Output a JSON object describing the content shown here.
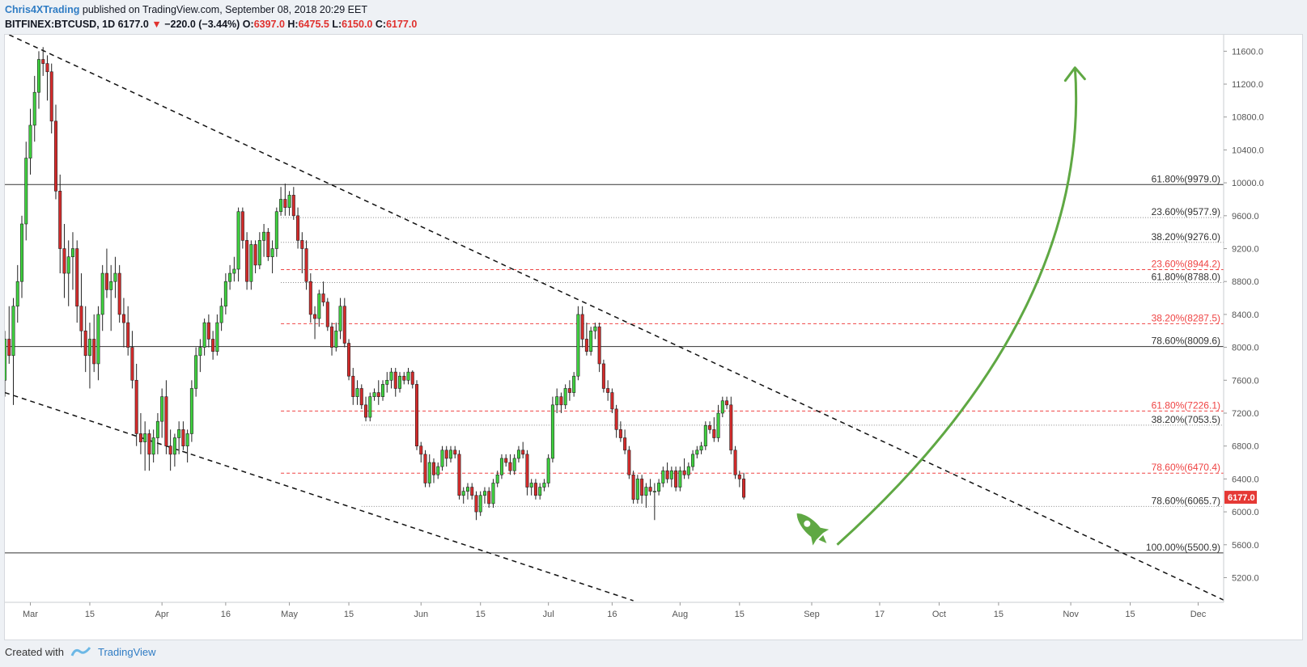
{
  "header": {
    "author": "Chris4XTrading",
    "published": "published on TradingView.com, September 08, 2018 20:29 EET",
    "symbol": "BITFINEX:BTCUSD, 1D",
    "last": "6177.0",
    "change": "−220.0 (−3.44%)",
    "open_label": "O:",
    "open": "6397.0",
    "high_label": "H:",
    "high": "6475.5",
    "low_label": "L:",
    "low": "6150.0",
    "close_label": "C:",
    "close": "6177.0"
  },
  "footer": {
    "created": "Created with",
    "brand": "TradingView"
  },
  "colors": {
    "up": "#3fd03f",
    "down": "#d42b2b",
    "fib_red": "#ef4444",
    "arrow": "#5fa843",
    "axis_text": "#555555",
    "price_badge": "#e53935"
  },
  "chart_data": {
    "type": "candlestick",
    "symbol": "BTCUSD",
    "interval": "1D",
    "ylim": [
      4900,
      11800
    ],
    "y_ticks": [
      5200,
      5600,
      6000,
      6400,
      6800,
      7200,
      7600,
      8000,
      8400,
      8800,
      9200,
      9600,
      10000,
      10400,
      10800,
      11200,
      11600
    ],
    "x_ticks": [
      {
        "label": "Mar",
        "day": 0
      },
      {
        "label": "15",
        "day": 14
      },
      {
        "label": "Apr",
        "day": 31
      },
      {
        "label": "16",
        "day": 46
      },
      {
        "label": "May",
        "day": 61
      },
      {
        "label": "15",
        "day": 75
      },
      {
        "label": "Jun",
        "day": 92
      },
      {
        "label": "15",
        "day": 106
      },
      {
        "label": "Jul",
        "day": 122
      },
      {
        "label": "16",
        "day": 137
      },
      {
        "label": "Aug",
        "day": 153
      },
      {
        "label": "15",
        "day": 167
      },
      {
        "label": "Sep",
        "day": 184
      },
      {
        "label": "17",
        "day": 200
      },
      {
        "label": "Oct",
        "day": 214
      },
      {
        "label": "15",
        "day": 228
      },
      {
        "label": "Nov",
        "day": 245
      },
      {
        "label": "15",
        "day": 259
      },
      {
        "label": "Dec",
        "day": 275
      }
    ],
    "day_range": [
      -6,
      281
    ],
    "last_price": "6177.0",
    "candles": [
      [
        -6,
        7600,
        8200,
        7400,
        8100
      ],
      [
        -5,
        8100,
        8500,
        7800,
        7900
      ],
      [
        -4,
        7900,
        8600,
        7300,
        8500
      ],
      [
        -3,
        8500,
        9000,
        8300,
        8800
      ],
      [
        -2,
        8800,
        9600,
        8600,
        9500
      ],
      [
        -1,
        9500,
        10500,
        9300,
        10300
      ],
      [
        0,
        10300,
        10900,
        10100,
        10700
      ],
      [
        1,
        10700,
        11300,
        10500,
        11100
      ],
      [
        2,
        11100,
        11600,
        10900,
        11500
      ],
      [
        3,
        11500,
        11650,
        11300,
        11450
      ],
      [
        4,
        11450,
        11550,
        11000,
        11350
      ],
      [
        5,
        11350,
        11450,
        10600,
        10750
      ],
      [
        6,
        10750,
        10950,
        9800,
        9900
      ],
      [
        7,
        9900,
        10100,
        8900,
        9200
      ],
      [
        8,
        9200,
        9500,
        8600,
        8900
      ],
      [
        9,
        8900,
        9300,
        8500,
        9100
      ],
      [
        10,
        9100,
        9400,
        8700,
        9200
      ],
      [
        11,
        9200,
        9300,
        8300,
        8500
      ],
      [
        12,
        8500,
        8900,
        8000,
        8200
      ],
      [
        13,
        8200,
        8500,
        7700,
        7900
      ],
      [
        14,
        7900,
        8300,
        7500,
        8100
      ],
      [
        15,
        8100,
        8400,
        7700,
        7800
      ],
      [
        16,
        7800,
        8500,
        7600,
        8400
      ],
      [
        17,
        8400,
        9000,
        8200,
        8900
      ],
      [
        18,
        8900,
        9200,
        8600,
        8700
      ],
      [
        19,
        8700,
        9000,
        8200,
        8800
      ],
      [
        20,
        8800,
        9100,
        8600,
        8900
      ],
      [
        21,
        8900,
        9000,
        8300,
        8400
      ],
      [
        22,
        8400,
        8600,
        8000,
        8300
      ],
      [
        23,
        8300,
        8500,
        7900,
        8000
      ],
      [
        24,
        8000,
        8200,
        7500,
        7600
      ],
      [
        25,
        7600,
        7800,
        6800,
        6950
      ],
      [
        26,
        6950,
        7200,
        6700,
        6850
      ],
      [
        27,
        6850,
        7100,
        6500,
        6950
      ],
      [
        28,
        6950,
        7000,
        6500,
        6700
      ],
      [
        29,
        6700,
        7000,
        6600,
        6900
      ],
      [
        30,
        6900,
        7200,
        6700,
        7100
      ],
      [
        31,
        7100,
        7500,
        6900,
        7400
      ],
      [
        32,
        7400,
        7600,
        6700,
        6800
      ],
      [
        33,
        6800,
        7000,
        6500,
        6700
      ],
      [
        34,
        6700,
        6950,
        6550,
        6900
      ],
      [
        35,
        6900,
        7100,
        6700,
        7000
      ],
      [
        36,
        7000,
        7100,
        6750,
        6800
      ],
      [
        37,
        6800,
        7000,
        6600,
        6950
      ],
      [
        38,
        6950,
        7600,
        6850,
        7500
      ],
      [
        39,
        7500,
        8000,
        7400,
        7900
      ],
      [
        40,
        7900,
        8100,
        7700,
        8000
      ],
      [
        41,
        8000,
        8350,
        7900,
        8300
      ],
      [
        42,
        8300,
        8400,
        8000,
        8100
      ],
      [
        43,
        8100,
        8200,
        7850,
        7950
      ],
      [
        44,
        7950,
        8400,
        7900,
        8300
      ],
      [
        45,
        8300,
        8600,
        8200,
        8500
      ],
      [
        46,
        8500,
        8900,
        8400,
        8800
      ],
      [
        47,
        8800,
        9000,
        8700,
        8900
      ],
      [
        48,
        8900,
        9100,
        8800,
        8950
      ],
      [
        49,
        8950,
        9700,
        8800,
        9650
      ],
      [
        50,
        9650,
        9700,
        9200,
        9300
      ],
      [
        51,
        9300,
        9400,
        8700,
        8800
      ],
      [
        52,
        8800,
        9300,
        8700,
        9250
      ],
      [
        53,
        9250,
        9300,
        8900,
        9000
      ],
      [
        54,
        9000,
        9400,
        8950,
        9300
      ],
      [
        55,
        9300,
        9500,
        9100,
        9400
      ],
      [
        56,
        9400,
        9450,
        9050,
        9100
      ],
      [
        57,
        9100,
        9300,
        8900,
        9200
      ],
      [
        58,
        9200,
        9700,
        9100,
        9650
      ],
      [
        59,
        9650,
        9950,
        9600,
        9800
      ],
      [
        60,
        9800,
        9990,
        9600,
        9700
      ],
      [
        61,
        9700,
        9900,
        9600,
        9850
      ],
      [
        62,
        9850,
        9950,
        9550,
        9600
      ],
      [
        63,
        9600,
        9700,
        9200,
        9300
      ],
      [
        64,
        9300,
        9400,
        8900,
        9200
      ],
      [
        65,
        9200,
        9300,
        8700,
        8800
      ],
      [
        66,
        8800,
        8900,
        8300,
        8400
      ],
      [
        67,
        8400,
        8500,
        8100,
        8350
      ],
      [
        68,
        8350,
        8700,
        8250,
        8650
      ],
      [
        69,
        8650,
        8800,
        8500,
        8550
      ],
      [
        70,
        8550,
        8600,
        8200,
        8250
      ],
      [
        71,
        8250,
        8300,
        7900,
        8000
      ],
      [
        72,
        8000,
        8300,
        7950,
        8200
      ],
      [
        73,
        8200,
        8600,
        8100,
        8500
      ],
      [
        74,
        8500,
        8600,
        8000,
        8050
      ],
      [
        75,
        8050,
        8100,
        7600,
        7650
      ],
      [
        76,
        7650,
        7750,
        7300,
        7400
      ],
      [
        77,
        7400,
        7600,
        7300,
        7500
      ],
      [
        78,
        7500,
        7550,
        7250,
        7300
      ],
      [
        79,
        7300,
        7400,
        7100,
        7150
      ],
      [
        80,
        7150,
        7450,
        7100,
        7400
      ],
      [
        81,
        7400,
        7500,
        7350,
        7450
      ],
      [
        82,
        7450,
        7600,
        7300,
        7400
      ],
      [
        83,
        7400,
        7600,
        7350,
        7550
      ],
      [
        84,
        7550,
        7700,
        7450,
        7600
      ],
      [
        85,
        7600,
        7750,
        7500,
        7700
      ],
      [
        86,
        7700,
        7750,
        7400,
        7500
      ],
      [
        87,
        7500,
        7700,
        7450,
        7650
      ],
      [
        88,
        7650,
        7700,
        7550,
        7600
      ],
      [
        89,
        7600,
        7750,
        7550,
        7700
      ],
      [
        90,
        7700,
        7720,
        7500,
        7550
      ],
      [
        91,
        7550,
        7600,
        6750,
        6800
      ],
      [
        92,
        6800,
        6850,
        6600,
        6700
      ],
      [
        93,
        6700,
        6750,
        6300,
        6350
      ],
      [
        94,
        6350,
        6700,
        6300,
        6600
      ],
      [
        95,
        6600,
        6650,
        6350,
        6450
      ],
      [
        96,
        6450,
        6600,
        6400,
        6550
      ],
      [
        97,
        6550,
        6800,
        6500,
        6750
      ],
      [
        98,
        6750,
        6800,
        6550,
        6650
      ],
      [
        99,
        6650,
        6800,
        6600,
        6750
      ],
      [
        100,
        6750,
        6800,
        6650,
        6700
      ],
      [
        101,
        6700,
        6750,
        6150,
        6200
      ],
      [
        102,
        6200,
        6300,
        6100,
        6250
      ],
      [
        103,
        6250,
        6350,
        6150,
        6300
      ],
      [
        104,
        6300,
        6350,
        6150,
        6200
      ],
      [
        105,
        6200,
        6250,
        5900,
        6000
      ],
      [
        106,
        6000,
        6250,
        5950,
        6200
      ],
      [
        107,
        6200,
        6300,
        6100,
        6250
      ],
      [
        108,
        6250,
        6300,
        6050,
        6100
      ],
      [
        109,
        6100,
        6400,
        6050,
        6350
      ],
      [
        110,
        6350,
        6500,
        6300,
        6450
      ],
      [
        111,
        6450,
        6700,
        6400,
        6650
      ],
      [
        112,
        6650,
        6700,
        6550,
        6600
      ],
      [
        113,
        6600,
        6700,
        6450,
        6500
      ],
      [
        114,
        6500,
        6700,
        6450,
        6650
      ],
      [
        115,
        6650,
        6800,
        6600,
        6750
      ],
      [
        116,
        6750,
        6850,
        6650,
        6700
      ],
      [
        117,
        6700,
        6750,
        6200,
        6300
      ],
      [
        118,
        6300,
        6400,
        6200,
        6350
      ],
      [
        119,
        6350,
        6400,
        6150,
        6200
      ],
      [
        120,
        6200,
        6350,
        6150,
        6300
      ],
      [
        121,
        6300,
        6400,
        6250,
        6350
      ],
      [
        122,
        6350,
        6700,
        6300,
        6650
      ],
      [
        123,
        6650,
        7400,
        6600,
        7300
      ],
      [
        124,
        7300,
        7500,
        7200,
        7400
      ],
      [
        125,
        7400,
        7450,
        7200,
        7300
      ],
      [
        126,
        7300,
        7550,
        7250,
        7500
      ],
      [
        127,
        7500,
        7600,
        7350,
        7450
      ],
      [
        128,
        7450,
        7700,
        7400,
        7650
      ],
      [
        129,
        7650,
        8500,
        7600,
        8400
      ],
      [
        130,
        8400,
        8500,
        8000,
        8100
      ],
      [
        131,
        8100,
        8300,
        7900,
        7950
      ],
      [
        132,
        7950,
        8250,
        7900,
        8200
      ],
      [
        133,
        8200,
        8300,
        8100,
        8250
      ],
      [
        134,
        8250,
        8300,
        7700,
        7800
      ],
      [
        135,
        7800,
        7850,
        7450,
        7500
      ],
      [
        136,
        7500,
        7600,
        7350,
        7450
      ],
      [
        137,
        7450,
        7500,
        7200,
        7250
      ],
      [
        138,
        7250,
        7300,
        6900,
        7000
      ],
      [
        139,
        7000,
        7100,
        6850,
        6900
      ],
      [
        140,
        6900,
        7000,
        6700,
        6750
      ],
      [
        141,
        6750,
        6800,
        6400,
        6450
      ],
      [
        142,
        6450,
        6500,
        6100,
        6150
      ],
      [
        143,
        6150,
        6450,
        6100,
        6400
      ],
      [
        144,
        6400,
        6450,
        6100,
        6200
      ],
      [
        145,
        6200,
        6350,
        6050,
        6300
      ],
      [
        146,
        6300,
        6400,
        6200,
        6250
      ],
      [
        147,
        6250,
        6350,
        5900,
        6250
      ],
      [
        148,
        6250,
        6400,
        6200,
        6350
      ],
      [
        149,
        6350,
        6550,
        6300,
        6500
      ],
      [
        150,
        6500,
        6600,
        6350,
        6400
      ],
      [
        151,
        6400,
        6550,
        6300,
        6500
      ],
      [
        152,
        6500,
        6550,
        6250,
        6300
      ],
      [
        153,
        6300,
        6550,
        6250,
        6500
      ],
      [
        154,
        6500,
        6650,
        6400,
        6450
      ],
      [
        155,
        6450,
        6600,
        6400,
        6550
      ],
      [
        156,
        6550,
        6750,
        6500,
        6700
      ],
      [
        157,
        6700,
        6800,
        6650,
        6750
      ],
      [
        158,
        6750,
        6850,
        6700,
        6800
      ],
      [
        159,
        6800,
        7100,
        6750,
        7050
      ],
      [
        160,
        7050,
        7100,
        6950,
        7000
      ],
      [
        161,
        7000,
        7150,
        6850,
        6900
      ],
      [
        162,
        6900,
        7300,
        6850,
        7200
      ],
      [
        163,
        7200,
        7400,
        7150,
        7350
      ],
      [
        164,
        7350,
        7400,
        7250,
        7300
      ],
      [
        165,
        7300,
        7400,
        6700,
        6750
      ],
      [
        166,
        6750,
        6800,
        6400,
        6450
      ],
      [
        167,
        6450,
        6500,
        6300,
        6400
      ],
      [
        168,
        6400,
        6475,
        6150,
        6177
      ]
    ],
    "horizontal_lines": [
      {
        "price": 9979.0,
        "label": "61.80%(9979.0)",
        "style": "solid"
      },
      {
        "price": 9577.9,
        "label": "23.60%(9577.9)",
        "style": "dotted"
      },
      {
        "price": 9276.0,
        "label": "38.20%(9276.0)",
        "style": "dotted"
      },
      {
        "price": 8944.2,
        "label": "23.60%(8944.2)",
        "style": "red-dashed"
      },
      {
        "price": 8788.0,
        "label": "61.80%(8788.0)",
        "style": "dotted"
      },
      {
        "price": 8287.5,
        "label": "38.20%(8287.5)",
        "style": "red-dashed"
      },
      {
        "price": 8009.6,
        "label": "78.60%(8009.6)",
        "style": "solid"
      },
      {
        "price": 7226.1,
        "label": "61.80%(7226.1)",
        "style": "red-dashed"
      },
      {
        "price": 7053.5,
        "label": "38.20%(7053.5)",
        "style": "dotted"
      },
      {
        "price": 6470.4,
        "label": "78.60%(6470.4)",
        "style": "red-dashed"
      },
      {
        "price": 6065.7,
        "label": "78.60%(6065.7)",
        "style": "dotted"
      },
      {
        "price": 5500.9,
        "label": "100.00%(5500.9)",
        "style": "solid"
      }
    ],
    "trendlines": [
      {
        "from": [
          -5,
          11800
        ],
        "to": [
          283,
          4880
        ],
        "style": "dashed"
      },
      {
        "from": [
          -6,
          7450
        ],
        "to": [
          142,
          4920
        ],
        "style": "dashed"
      }
    ],
    "annotations": [
      {
        "type": "curved-arrow",
        "from": [
          190,
          5600
        ],
        "to": [
          246,
          11400
        ],
        "color": "#5fa843"
      },
      {
        "type": "rocket-icon",
        "at": [
          184,
          5800
        ]
      }
    ]
  }
}
